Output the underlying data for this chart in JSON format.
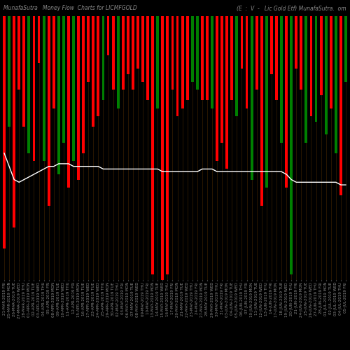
{
  "title_left": "MunafaSutra   Money Flow  Charts for LICMFGOLD",
  "title_right": "(E  :  V  -   Lic Gold Etf) MunafaSutra.  om",
  "bg_color": "#000000",
  "bar_colors": [
    "red",
    "green",
    "red",
    "red",
    "red",
    "green",
    "red",
    "red",
    "green",
    "red",
    "red",
    "green",
    "green",
    "red",
    "green",
    "red",
    "red",
    "red",
    "red",
    "red",
    "green",
    "red",
    "red",
    "green",
    "red",
    "red",
    "red",
    "red",
    "red",
    "red",
    "red",
    "green",
    "red",
    "red",
    "red",
    "red",
    "red",
    "red",
    "green",
    "green",
    "red",
    "red",
    "green",
    "red",
    "red",
    "red",
    "red",
    "green",
    "red",
    "red",
    "green",
    "red",
    "red",
    "green",
    "red",
    "red",
    "green",
    "red",
    "green",
    "red",
    "red",
    "green",
    "red",
    "green",
    "red",
    "green",
    "red",
    "green",
    "red",
    "green"
  ],
  "bar_heights": [
    88,
    42,
    80,
    28,
    42,
    52,
    55,
    18,
    55,
    72,
    35,
    60,
    48,
    65,
    55,
    62,
    52,
    25,
    42,
    38,
    32,
    15,
    28,
    35,
    28,
    22,
    28,
    20,
    25,
    32,
    98,
    35,
    100,
    98,
    28,
    38,
    35,
    32,
    25,
    28,
    32,
    32,
    35,
    55,
    48,
    58,
    32,
    38,
    20,
    35,
    62,
    28,
    72,
    65,
    22,
    32,
    48,
    65,
    98,
    20,
    28,
    48,
    38,
    40,
    30,
    45,
    35,
    52,
    68,
    25
  ],
  "line_y": [
    48,
    43,
    38,
    37,
    38,
    39,
    40,
    41,
    42,
    43,
    43,
    44,
    44,
    44,
    43,
    43,
    43,
    43,
    43,
    43,
    42,
    42,
    42,
    42,
    42,
    42,
    42,
    42,
    42,
    42,
    42,
    42,
    41,
    41,
    41,
    41,
    41,
    41,
    41,
    41,
    42,
    42,
    42,
    41,
    41,
    41,
    41,
    41,
    41,
    41,
    41,
    41,
    41,
    41,
    41,
    41,
    41,
    40,
    38,
    37,
    37,
    37,
    37,
    37,
    37,
    37,
    37,
    37,
    36,
    36
  ],
  "xlabel_fontsize": 4.0,
  "title_fontsize": 5.5,
  "line_color": "#ffffff",
  "grid_color": "#3a2000",
  "tick_labels": [
    "21-MAR-2019 FRI",
    "25-MAR-2019 MON",
    "26-MAR-2019 TUE",
    "27-MAR-2019 WED",
    "28-MAR-2019 THU",
    "01-APR-2019 MON",
    "02-APR-2019 TUE",
    "03-APR-2019 WED",
    "04-APR-2019 THU",
    "05-APR-2019 FRI",
    "08-APR-2019 MON",
    "09-APR-2019 TUE",
    "10-APR-2019 WED",
    "11-APR-2019 THU",
    "12-APR-2019 FRI",
    "15-APR-2019 MON",
    "16-APR-2019 TUE",
    "17-APR-2019 WED",
    "23-APR-2019 TUE",
    "24-APR-2019 WED",
    "25-APR-2019 THU",
    "29-APR-2019 MON",
    "30-APR-2019 TUE",
    "02-MAY-2019 THU",
    "03-MAY-2019 FRI",
    "06-MAY-2019 MON",
    "07-MAY-2019 TUE",
    "08-MAY-2019 WED",
    "09-MAY-2019 THU",
    "10-MAY-2019 FRI",
    "13-MAY-2019 MON",
    "14-MAY-2019 TUE",
    "15-MAY-2019 WED",
    "16-MAY-2019 THU",
    "17-MAY-2019 FRI",
    "20-MAY-2019 MON",
    "21-MAY-2019 TUE",
    "22-MAY-2019 WED",
    "23-MAY-2019 THU",
    "24-MAY-2019 FRI",
    "27-MAY-2019 MON",
    "28-MAY-2019 TUE",
    "29-MAY-2019 WED",
    "30-MAY-2019 THU",
    "31-MAY-2019 FRI",
    "03-JUN-2019 MON",
    "04-JUN-2019 TUE",
    "05-JUN-2019 WED",
    "06-JUN-2019 THU",
    "07-JUN-2019 FRI",
    "10-JUN-2019 MON",
    "11-JUN-2019 TUE",
    "12-JUN-2019 WED",
    "13-JUN-2019 THU",
    "14-JUN-2019 FRI",
    "17-JUN-2019 MON",
    "18-JUN-2019 TUE",
    "19-JUN-2019 WED",
    "20-JUN-2019 THU",
    "21-JUN-2019 FRI",
    "24-JUN-2019 MON",
    "25-JUN-2019 TUE",
    "26-JUN-2019 WED",
    "27-JUN-2019 THU",
    "28-JUN-2019 FRI",
    "01-JUL-2019 MON",
    "02-JUL-2019 TUE",
    "03-JUL-2019 WED",
    "04-JUL-2019 THU",
    "05-JUL-2019 FRI"
  ]
}
